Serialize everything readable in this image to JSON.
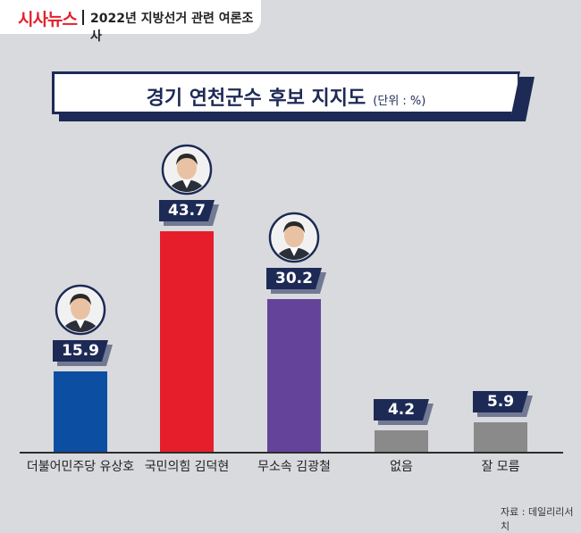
{
  "header": {
    "logo": "시사뉴스",
    "subtitle": "2022년 지방선거 관련 여론조사"
  },
  "title": {
    "main": "경기 연천군수 후보 지지도",
    "unit": "(단위 : %)"
  },
  "source": "자료 : 데일리리서치",
  "chart_data": {
    "type": "bar",
    "title": "경기 연천군수 후보 지지도",
    "unit": "(단위 : %)",
    "categories": [
      "더불어민주당 유상호",
      "국민의힘 김덕현",
      "무소속 김광철",
      "없음",
      "잘 모름"
    ],
    "values": [
      15.9,
      43.7,
      30.2,
      4.2,
      5.9
    ],
    "value_labels": [
      "15.9",
      "43.7",
      "30.2",
      "4.2",
      "5.9"
    ],
    "colors": [
      "#0b4ea2",
      "#e61e2b",
      "#64449a",
      "#8a8a8a",
      "#8a8a8a"
    ],
    "portraits": [
      true,
      true,
      true,
      false,
      false
    ],
    "ylim": [
      0,
      43.7
    ],
    "grid": false,
    "legend": "none"
  }
}
